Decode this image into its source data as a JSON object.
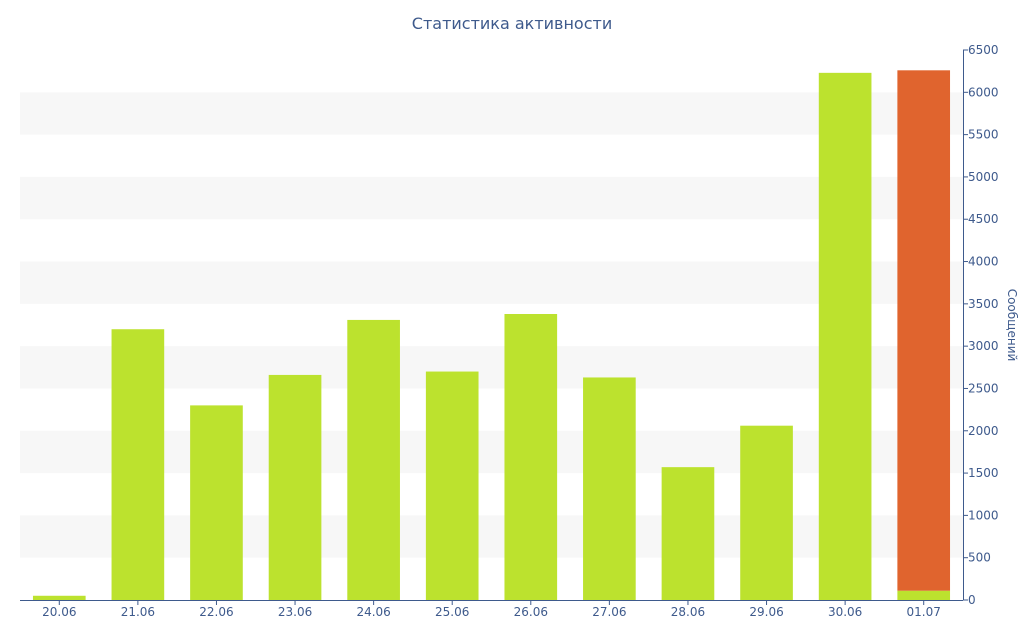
{
  "chart_data": {
    "type": "bar",
    "title": "Статистика активности",
    "xlabel": "",
    "ylabel": "Сообщений",
    "ylim": [
      0,
      6500
    ],
    "yticks": [
      0,
      500,
      1000,
      1500,
      2000,
      2500,
      3000,
      3500,
      4000,
      4500,
      5000,
      5500,
      6000,
      6500
    ],
    "y_axis_side": "right",
    "grid": "alternating horizontal bands",
    "categories": [
      "20.06",
      "21.06",
      "22.06",
      "23.06",
      "24.06",
      "25.06",
      "26.06",
      "27.06",
      "28.06",
      "29.06",
      "30.06",
      "01.07"
    ],
    "series": [
      {
        "color": "#bce22e",
        "values": [
          50,
          3200,
          2300,
          2660,
          3310,
          2700,
          3380,
          2630,
          1570,
          2060,
          6230,
          110
        ]
      },
      {
        "color": "#e0642e",
        "values": [
          0,
          0,
          0,
          0,
          0,
          0,
          0,
          0,
          0,
          0,
          0,
          6150
        ]
      }
    ],
    "colors": {
      "text": "#3e5a8c",
      "band": "#f7f7f7",
      "axis": "#3e5a8c"
    }
  }
}
